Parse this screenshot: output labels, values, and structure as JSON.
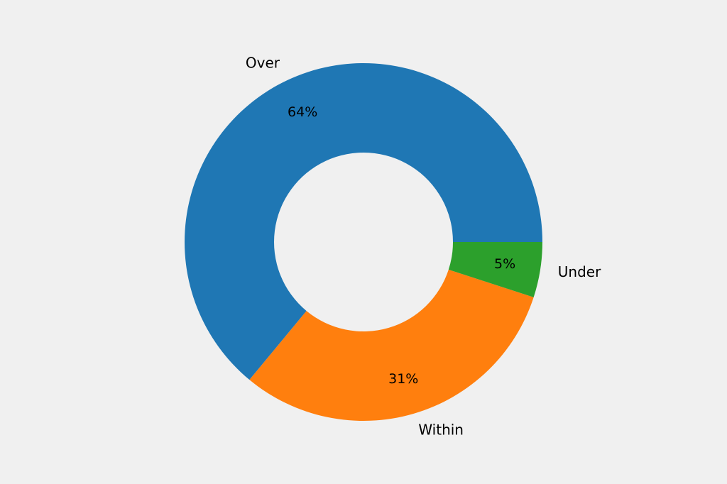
{
  "chart_data": {
    "type": "pie",
    "donut": true,
    "categories": [
      "Over",
      "Within",
      "Under"
    ],
    "values": [
      64,
      31,
      5
    ],
    "value_labels": [
      "64%",
      "31%",
      "5%"
    ],
    "colors": [
      "#1f77b4",
      "#ff7f0e",
      "#2ca02c"
    ],
    "start_angle_deg": 0,
    "direction": "counterclockwise",
    "title": "",
    "legend": "none"
  }
}
